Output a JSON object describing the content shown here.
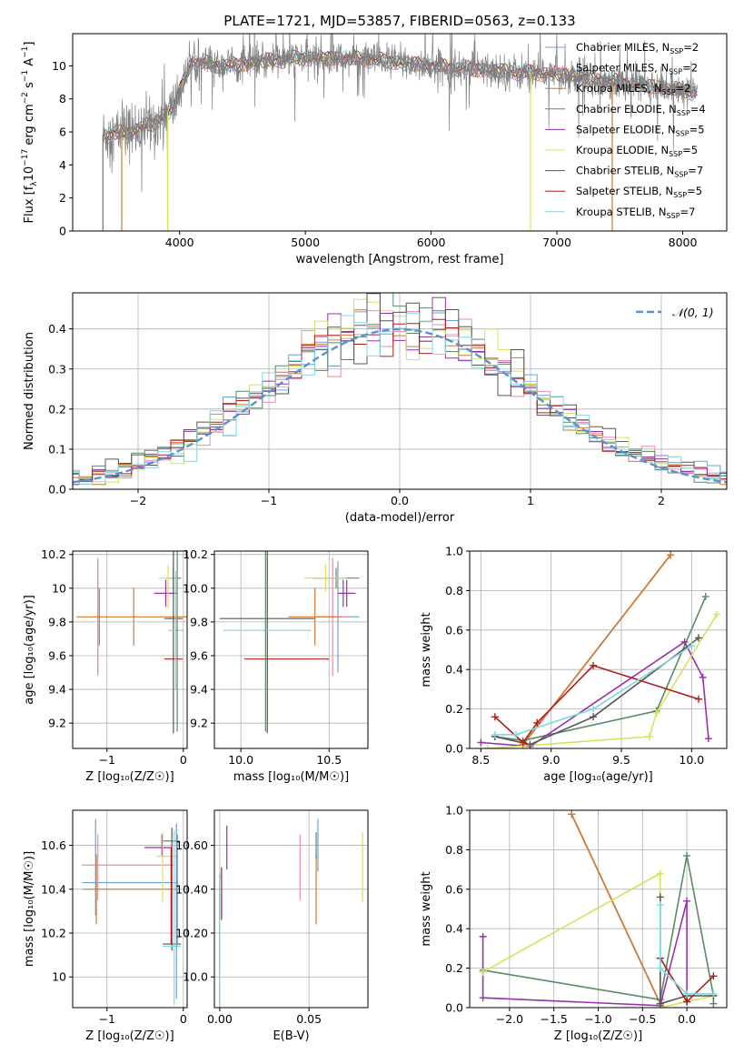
{
  "figure_title": "PLATE=1721, MJD=53857, FIBERID=0563, z=0.133",
  "colors": {
    "c1": "#6fa0d8",
    "c2": "#e88fa8",
    "c3": "#d27a2a",
    "c4": "#5a8a62",
    "c5": "#9b2fae",
    "c6": "#d4e35a",
    "c7": "#555555",
    "c8": "#b01d1d",
    "c9": "#7fd9df",
    "data": "#808080",
    "normal": "#5b8fd6"
  },
  "chart_data": [
    {
      "id": "spectrum",
      "type": "line",
      "xlabel": "wavelength [Angstrom, rest frame]",
      "ylabel": "Flux [f_λ10^-17 erg cm^-2 s^-1 A^-1]",
      "xlim": [
        3150,
        8350
      ],
      "ylim": [
        0,
        11.95
      ],
      "xticks": [
        4000,
        5000,
        6000,
        7000,
        8000
      ],
      "yticks": [
        0,
        2,
        4,
        6,
        8,
        10
      ],
      "legend_position": "top-right",
      "legend": [
        {
          "label": "Chabrier MILES, N",
          "sub": "SSP",
          "suffix": "=2",
          "color": "c1"
        },
        {
          "label": "Salpeter MILES, N",
          "sub": "SSP",
          "suffix": "=2",
          "color": "c2"
        },
        {
          "label": "Kroupa MILES, N",
          "sub": "SSP",
          "suffix": "=2",
          "color": "c3"
        },
        {
          "label": "Chabrier ELODIE, N",
          "sub": "SSP",
          "suffix": "=4",
          "color": "c4"
        },
        {
          "label": "Salpeter ELODIE, N",
          "sub": "SSP",
          "suffix": "=5",
          "color": "c5"
        },
        {
          "label": "Kroupa ELODIE, N",
          "sub": "SSP",
          "suffix": "=5",
          "color": "c6"
        },
        {
          "label": "Chabrier STELIB, N",
          "sub": "SSP",
          "suffix": "=7",
          "color": "c7"
        },
        {
          "label": "Salpeter STELIB, N",
          "sub": "SSP",
          "suffix": "=5",
          "color": "c8"
        },
        {
          "label": "Kroupa STELIB, N",
          "sub": "SSP",
          "suffix": "=7",
          "color": "c9"
        }
      ],
      "data_range": [
        3390,
        8115
      ],
      "continuum": [
        [
          3390,
          5.8
        ],
        [
          3600,
          6.0
        ],
        [
          3700,
          6.3
        ],
        [
          3800,
          6.5
        ],
        [
          3950,
          7.5
        ],
        [
          4100,
          10.3
        ],
        [
          4300,
          10.0
        ],
        [
          4500,
          10.1
        ],
        [
          4700,
          10.3
        ],
        [
          5000,
          10.5
        ],
        [
          5500,
          10.4
        ],
        [
          6000,
          10.0
        ],
        [
          6500,
          9.7
        ],
        [
          7000,
          9.5
        ],
        [
          7500,
          9.0
        ],
        [
          8000,
          8.5
        ],
        [
          8115,
          8.4
        ]
      ],
      "model_drops": [
        {
          "color": "c3",
          "x": 3540
        },
        {
          "color": "c6",
          "x": 3905
        },
        {
          "color": "c6",
          "x": 6790
        },
        {
          "color": "c3",
          "x": 7440
        }
      ]
    },
    {
      "id": "residuals",
      "type": "step",
      "xlabel": "(data-model)/error",
      "ylabel": "Normed distribution",
      "xlim": [
        -2.5,
        2.5
      ],
      "ylim": [
        0,
        0.49
      ],
      "xticks": [
        -2,
        -1,
        0,
        1,
        2
      ],
      "yticks": [
        0.0,
        0.1,
        0.2,
        0.3,
        0.4
      ],
      "grid": true,
      "legend_position": "top-right",
      "legend": [
        {
          "label": "𝒩(0, 1)",
          "color": "normal"
        }
      ],
      "bin_width": 0.1
    },
    {
      "id": "age_vs_Z",
      "type": "errorbar",
      "xlabel": "Z [log₁₀(Z/Z☉)]",
      "ylabel": "age  [log₁₀(age/yr)]",
      "xlim": [
        -1.45,
        0.05
      ],
      "ylim": [
        9.05,
        10.22
      ],
      "xticks": [
        -1,
        0
      ],
      "yticks": [
        9.2,
        9.4,
        9.6,
        9.8,
        10.0,
        10.2
      ],
      "grid": true,
      "points": [
        {
          "color": "c1",
          "x": -1.12,
          "xerr": 0.0,
          "y": 9.83,
          "yerr": 0.33
        },
        {
          "color": "c2",
          "x": -1.12,
          "xerr": 0.02,
          "y": 9.83,
          "yerr": 0.35
        },
        {
          "color": "c3",
          "x": -0.65,
          "xerr": 0.75,
          "y": 9.83,
          "yerr": 0.17
        },
        {
          "color": "c3",
          "x": -1.1,
          "xerr": 0.0,
          "y": 9.83,
          "yerr": 0.17
        },
        {
          "color": "c4",
          "x": -0.13,
          "xerr": 0.1,
          "y": 10.06,
          "yerr": 0.06
        },
        {
          "color": "c5",
          "x": -0.23,
          "xerr": 0.15,
          "y": 9.97,
          "yerr": 0.08
        },
        {
          "color": "c6",
          "x": -0.2,
          "xerr": 0.12,
          "y": 10.06,
          "yerr": 0.08
        },
        {
          "color": "c6",
          "x": -0.2,
          "xerr": 0.0,
          "y": 9.96,
          "yerr": 0.08
        },
        {
          "color": "c7",
          "x": -0.13,
          "xerr": 0.12,
          "y": 9.82,
          "yerr": 0.68
        },
        {
          "color": "c8",
          "x": -0.13,
          "xerr": 0.12,
          "y": 9.58,
          "yerr": 0.0
        },
        {
          "color": "c9",
          "x": -0.1,
          "xerr": 0.1,
          "y": 9.75,
          "yerr": 0.0
        },
        {
          "color": "c9",
          "x": -0.1,
          "xerr": 0.0,
          "y": 9.75,
          "yerr": 0.35
        },
        {
          "color": "c4",
          "x": -0.08,
          "xerr": 0.0,
          "y": 9.8,
          "yerr": 0.65
        }
      ]
    },
    {
      "id": "age_vs_mass",
      "type": "errorbar",
      "xlabel": "mass [log₁₀(M/M☉)]",
      "ylabel": "",
      "xlim": [
        9.85,
        10.72
      ],
      "ylim": [
        9.05,
        10.22
      ],
      "xticks": [
        10.0,
        10.5
      ],
      "yticks": [
        9.2,
        9.4,
        9.6,
        9.8,
        10.0,
        10.2
      ],
      "grid": true,
      "points": [
        {
          "color": "c1",
          "x": 10.55,
          "xerr": 0.12,
          "y": 9.83,
          "yerr": 0.33
        },
        {
          "color": "c2",
          "x": 10.52,
          "xerr": 0.1,
          "y": 9.83,
          "yerr": 0.35
        },
        {
          "color": "c3",
          "x": 10.42,
          "xerr": 0.15,
          "y": 9.83,
          "yerr": 0.17
        },
        {
          "color": "c4",
          "x": 10.54,
          "xerr": 0.13,
          "y": 10.06,
          "yerr": 0.06
        },
        {
          "color": "c5",
          "x": 10.6,
          "xerr": 0.05,
          "y": 9.97,
          "yerr": 0.08
        },
        {
          "color": "c6",
          "x": 10.48,
          "xerr": 0.12,
          "y": 10.06,
          "yerr": 0.08
        },
        {
          "color": "c7",
          "x": 10.15,
          "xerr": 0.27,
          "y": 9.82,
          "yerr": 0.68
        },
        {
          "color": "c8",
          "x": 10.26,
          "xerr": 0.24,
          "y": 9.58,
          "yerr": 0.0
        },
        {
          "color": "c9",
          "x": 10.15,
          "xerr": 0.25,
          "y": 9.75,
          "yerr": 0.0
        },
        {
          "color": "c4",
          "x": 10.14,
          "xerr": 0.0,
          "y": 9.8,
          "yerr": 0.65
        },
        {
          "color": "c5",
          "x": 10.58,
          "xerr": 0.0,
          "y": 9.97,
          "yerr": 0.08
        }
      ]
    },
    {
      "id": "weight_vs_age",
      "type": "line",
      "xlabel": "age  [log₁₀(age/yr)]",
      "ylabel": "mass weight",
      "xlim": [
        8.42,
        10.25
      ],
      "ylim": [
        0,
        1.0
      ],
      "xticks": [
        8.5,
        9.0,
        9.5,
        10.0
      ],
      "yticks": [
        0.0,
        0.2,
        0.4,
        0.6,
        0.8,
        1.0
      ],
      "grid": true,
      "series": [
        {
          "color": "c1",
          "x": [
            8.8,
            9.85
          ],
          "y": [
            0.02,
            0.98
          ]
        },
        {
          "color": "c2",
          "x": [
            8.8,
            9.85
          ],
          "y": [
            0.02,
            0.98
          ]
        },
        {
          "color": "c3",
          "x": [
            8.8,
            9.85
          ],
          "y": [
            0.02,
            0.98
          ]
        },
        {
          "color": "c4",
          "x": [
            8.6,
            8.8,
            9.75,
            10.1
          ],
          "y": [
            0.06,
            0.04,
            0.19,
            0.77
          ]
        },
        {
          "color": "c5",
          "x": [
            8.5,
            8.85,
            9.95,
            10.08,
            10.12
          ],
          "y": [
            0.03,
            0.01,
            0.54,
            0.36,
            0.05
          ]
        },
        {
          "color": "c6",
          "x": [
            8.55,
            9.7,
            9.75,
            10.18
          ],
          "y": [
            0.0,
            0.06,
            0.18,
            0.68
          ]
        },
        {
          "color": "c7",
          "x": [
            8.6,
            8.85,
            9.3,
            10.05
          ],
          "y": [
            0.06,
            0.02,
            0.16,
            0.56
          ]
        },
        {
          "color": "c8",
          "x": [
            8.6,
            8.8,
            8.9,
            9.3,
            10.05
          ],
          "y": [
            0.16,
            0.03,
            0.13,
            0.42,
            0.25
          ]
        },
        {
          "color": "c9",
          "x": [
            8.6,
            8.75,
            9.3,
            10.0
          ],
          "y": [
            0.07,
            0.07,
            0.2,
            0.52
          ]
        }
      ]
    },
    {
      "id": "mass_vs_Z",
      "type": "errorbar",
      "xlabel": "Z [log₁₀(Z/Z☉)]",
      "ylabel": "mass [log₁₀(M/M☉)]",
      "xlim": [
        -1.45,
        0.05
      ],
      "ylim": [
        9.86,
        10.76
      ],
      "xticks": [
        -1,
        0
      ],
      "yticks": [
        10.0,
        10.2,
        10.4,
        10.6
      ],
      "grid": true,
      "points": [
        {
          "color": "c1",
          "x": -0.7,
          "xerr": 0.63,
          "y": 10.43,
          "yerr": 0.0
        },
        {
          "color": "c1",
          "x": -1.15,
          "xerr": 0.0,
          "y": 10.5,
          "yerr": 0.22
        },
        {
          "color": "c2",
          "x": -0.73,
          "xerr": 0.6,
          "y": 10.51,
          "yerr": 0.0
        },
        {
          "color": "c2",
          "x": -1.12,
          "xerr": 0.0,
          "y": 10.5,
          "yerr": 0.15
        },
        {
          "color": "c3",
          "x": -0.7,
          "xerr": 0.62,
          "y": 10.4,
          "yerr": 0.0
        },
        {
          "color": "c3",
          "x": -1.14,
          "xerr": 0.0,
          "y": 10.4,
          "yerr": 0.16
        },
        {
          "color": "c4",
          "x": -0.17,
          "xerr": 0.12,
          "y": 10.62,
          "yerr": 0.0
        },
        {
          "color": "c4",
          "x": -0.08,
          "xerr": 0.0,
          "y": 10.4,
          "yerr": 0.25
        },
        {
          "color": "c5",
          "x": -0.33,
          "xerr": 0.18,
          "y": 10.59,
          "yerr": 0.0
        },
        {
          "color": "c5",
          "x": -0.28,
          "xerr": 0.0,
          "y": 10.6,
          "yerr": 0.05
        },
        {
          "color": "c6",
          "x": -0.22,
          "xerr": 0.13,
          "y": 10.55,
          "yerr": 0.0
        },
        {
          "color": "c6",
          "x": -0.27,
          "xerr": 0.0,
          "y": 10.5,
          "yerr": 0.16
        },
        {
          "color": "c7",
          "x": -0.15,
          "xerr": 0.12,
          "y": 10.15,
          "yerr": 0.0
        },
        {
          "color": "c7",
          "x": -0.15,
          "xerr": 0.0,
          "y": 10.4,
          "yerr": 0.28
        },
        {
          "color": "c8",
          "x": -0.16,
          "xerr": 0.0,
          "y": 10.37,
          "yerr": 0.22
        },
        {
          "color": "c9",
          "x": -0.15,
          "xerr": 0.12,
          "y": 10.14,
          "yerr": 0.0
        },
        {
          "color": "c9",
          "x": -0.12,
          "xerr": 0.0,
          "y": 10.27,
          "yerr": 0.4
        },
        {
          "color": "c1",
          "x": -0.09,
          "xerr": 0.0,
          "y": 10.3,
          "yerr": 0.4
        }
      ]
    },
    {
      "id": "mass_vs_EBV",
      "type": "errorbar",
      "xlabel": "E(B-V)",
      "ylabel": "",
      "xlim": [
        -0.003,
        0.083
      ],
      "ylim": [
        9.86,
        10.76
      ],
      "xticks": [
        0.0,
        0.05
      ],
      "yticks": [
        10.0,
        10.2,
        10.4,
        10.6
      ],
      "grid": true,
      "points": [
        {
          "color": "c1",
          "x": 0.0,
          "xerr": 0.0,
          "y": 10.25,
          "yerr": 0.22
        },
        {
          "color": "c2",
          "x": 0.045,
          "xerr": 0.0,
          "y": 10.5,
          "yerr": 0.15
        },
        {
          "color": "c3",
          "x": 0.054,
          "xerr": 0.0,
          "y": 10.4,
          "yerr": 0.16
        },
        {
          "color": "c4",
          "x": 0.054,
          "xerr": 0.0,
          "y": 10.6,
          "yerr": 0.06
        },
        {
          "color": "c5",
          "x": 0.004,
          "xerr": 0.0,
          "y": 10.59,
          "yerr": 0.1
        },
        {
          "color": "c6",
          "x": 0.08,
          "xerr": 0.0,
          "y": 10.5,
          "yerr": 0.16
        },
        {
          "color": "c7",
          "x": 0.0,
          "xerr": 0.0,
          "y": 10.15,
          "yerr": 0.28
        },
        {
          "color": "c8",
          "x": 0.001,
          "xerr": 0.0,
          "y": 10.38,
          "yerr": 0.12
        },
        {
          "color": "c9",
          "x": 0.0,
          "xerr": 0.0,
          "y": 10.15,
          "yerr": 0.3
        },
        {
          "color": "c1",
          "x": 0.055,
          "xerr": 0.0,
          "y": 10.6,
          "yerr": 0.12
        }
      ]
    },
    {
      "id": "weight_vs_Z",
      "type": "line",
      "xlabel": "Z [log₁₀(Z/Z☉)]",
      "ylabel": "mass weight",
      "xlim": [
        -2.45,
        0.45
      ],
      "ylim": [
        0,
        1.0
      ],
      "xticks": [
        -2.0,
        -1.5,
        -1.0,
        -0.5,
        0.0
      ],
      "yticks": [
        0.0,
        0.2,
        0.4,
        0.6,
        0.8,
        1.0
      ],
      "grid": true,
      "series": [
        {
          "color": "c1",
          "x": [
            -1.3,
            -0.3
          ],
          "y": [
            0.98,
            0.02
          ]
        },
        {
          "color": "c2",
          "x": [
            -1.3,
            -0.3
          ],
          "y": [
            0.98,
            0.02
          ]
        },
        {
          "color": "c3",
          "x": [
            -1.3,
            -0.3
          ],
          "y": [
            0.98,
            0.02
          ]
        },
        {
          "color": "c4",
          "x": [
            -2.3,
            -0.3,
            0.0,
            0.3,
            0.3
          ],
          "y": [
            0.19,
            0.04,
            0.77,
            0.06,
            0.02
          ]
        },
        {
          "color": "c5",
          "x": [
            -2.3,
            -2.3,
            -0.3,
            0.0,
            0.0
          ],
          "y": [
            0.36,
            0.05,
            0.01,
            0.54,
            0.03
          ]
        },
        {
          "color": "c6",
          "x": [
            -2.3,
            -0.3,
            -0.3,
            0.3
          ],
          "y": [
            0.18,
            0.68,
            0.0,
            0.06
          ]
        },
        {
          "color": "c7",
          "x": [
            -0.3,
            -0.3,
            0.0,
            0.3
          ],
          "y": [
            0.56,
            0.02,
            0.06,
            0.06
          ]
        },
        {
          "color": "c8",
          "x": [
            -0.3,
            0.0,
            0.3
          ],
          "y": [
            0.25,
            0.03,
            0.16
          ]
        },
        {
          "color": "c9",
          "x": [
            -0.3,
            -0.3,
            0.0,
            0.3
          ],
          "y": [
            0.52,
            0.2,
            0.07,
            0.07
          ]
        }
      ]
    }
  ]
}
